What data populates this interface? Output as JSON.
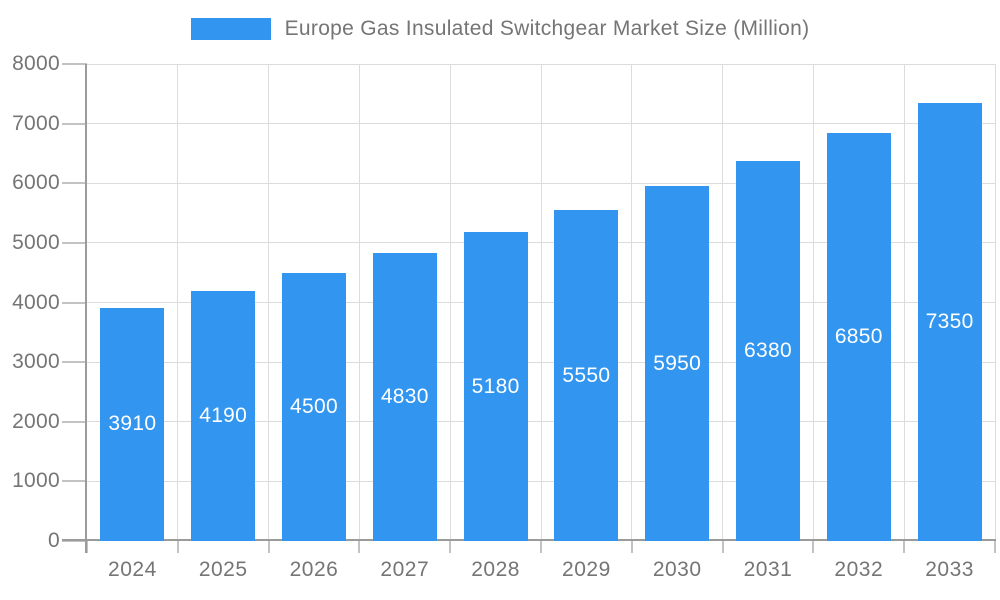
{
  "chart_data": {
    "type": "bar",
    "title": "Europe Gas Insulated Switchgear Market Size (Million)",
    "xlabel": "",
    "ylabel": "",
    "categories": [
      "2024",
      "2025",
      "2026",
      "2027",
      "2028",
      "2029",
      "2030",
      "2031",
      "2032",
      "2033"
    ],
    "values": [
      3910,
      4190,
      4500,
      4830,
      5180,
      5550,
      5950,
      6380,
      6850,
      7350
    ],
    "series": [
      {
        "name": "Europe Gas Insulated Switchgear Market Size (Million)",
        "values": [
          3910,
          4190,
          4500,
          4830,
          5180,
          5550,
          5950,
          6380,
          6850,
          7350
        ]
      }
    ],
    "ylim": [
      0,
      8000
    ],
    "ytick_interval": 1000,
    "ytick_labels": [
      "0",
      "1000",
      "2000",
      "3000",
      "4000",
      "5000",
      "6000",
      "7000",
      "8000"
    ],
    "grid": "horizontal and vertical, light gray",
    "legend_position": "top-center",
    "value_labels": "white, centered inside bars"
  },
  "legend": {
    "label": "Europe Gas Insulated Switchgear Market Size (Million)"
  },
  "colors": {
    "bar": "#3296f0",
    "bar_value_text": "#ffffff",
    "axis_text": "#757575",
    "gridline": "#dcdcdc",
    "tick": "#c3c3c3",
    "axis_line": "#9b9b9b",
    "background": "#ffffff"
  }
}
